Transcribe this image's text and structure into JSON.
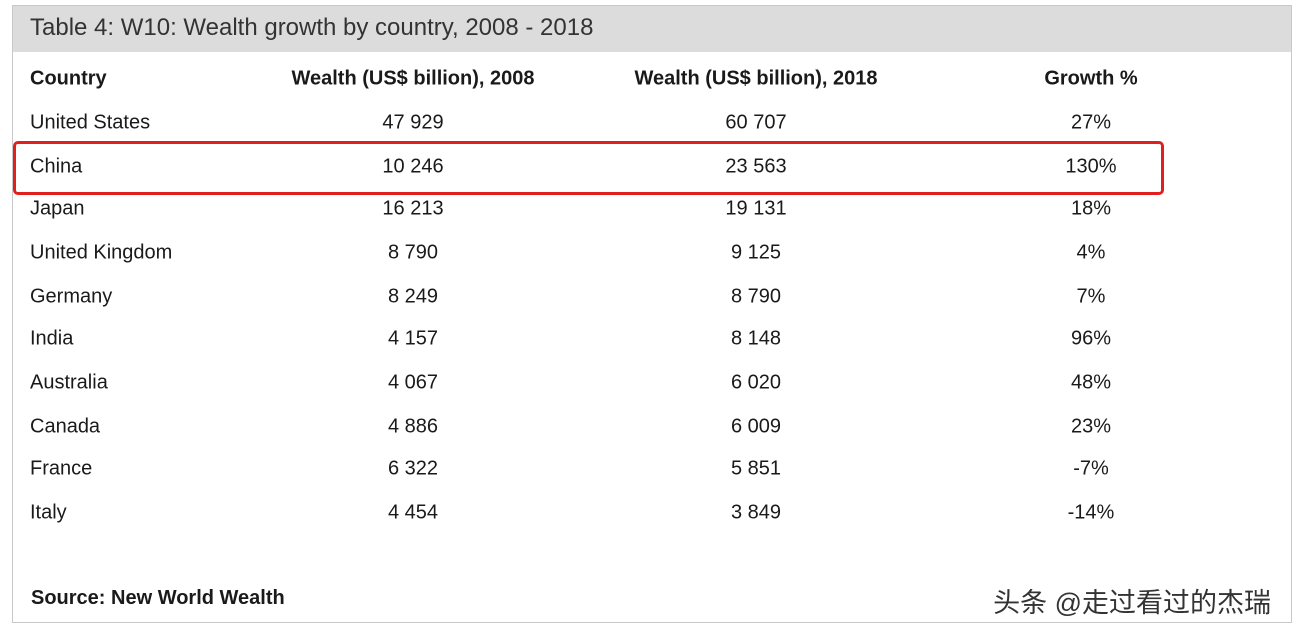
{
  "title": "Table 4: W10: Wealth growth by country, 2008 - 2018",
  "table": {
    "header": [
      "Country",
      "Wealth (US$ billion), 2008",
      "Wealth (US$ billion), 2018",
      "Growth %"
    ],
    "rows": [
      [
        "United States",
        "47 929",
        "60 707",
        "27%"
      ],
      [
        "China",
        "10 246",
        "23 563",
        "130%"
      ],
      [
        "Japan",
        "16 213",
        "19 131",
        "18%"
      ],
      [
        "United Kingdom",
        "8 790",
        "9 125",
        "4%"
      ],
      [
        "Germany",
        "8 249",
        "8 790",
        "7%"
      ],
      [
        "India",
        "4 157",
        "8 148",
        "96%"
      ],
      [
        "Australia",
        "4 067",
        "6 020",
        "48%"
      ],
      [
        "Canada",
        "4 886",
        "6 009",
        "23%"
      ],
      [
        "France",
        "6 322",
        "5 851",
        "-7%"
      ],
      [
        "Italy",
        "4 454",
        "3 849",
        "-14%"
      ]
    ]
  },
  "source": "Source: New World Wealth",
  "watermark": "头条 @走过看过的杰瑞"
}
